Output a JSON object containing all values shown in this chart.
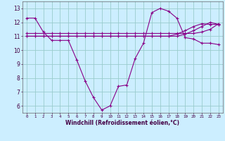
{
  "title": "",
  "xlabel": "Windchill (Refroidissement éolien,°C)",
  "ylabel": "",
  "bg_color": "#cceeff",
  "line_color": "#880088",
  "grid_color": "#99cccc",
  "hours": [
    0,
    1,
    2,
    3,
    4,
    5,
    6,
    7,
    8,
    9,
    10,
    11,
    12,
    13,
    14,
    15,
    16,
    17,
    18,
    19,
    20,
    21,
    22,
    23
  ],
  "curve1": [
    12.3,
    12.3,
    11.3,
    10.7,
    10.7,
    10.7,
    9.3,
    7.8,
    6.6,
    5.7,
    6.0,
    7.4,
    7.5,
    9.4,
    10.5,
    12.7,
    13.0,
    12.8,
    12.3,
    10.9,
    10.8,
    10.5,
    10.5,
    10.4
  ],
  "curve2": [
    11.2,
    11.2,
    11.2,
    11.2,
    11.2,
    11.2,
    11.2,
    11.2,
    11.2,
    11.2,
    11.2,
    11.2,
    11.2,
    11.2,
    11.2,
    11.2,
    11.2,
    11.2,
    11.2,
    11.2,
    11.2,
    11.3,
    11.5,
    11.9
  ],
  "curve3": [
    11.0,
    11.0,
    11.0,
    11.0,
    11.0,
    11.0,
    11.0,
    11.0,
    11.0,
    11.0,
    11.0,
    11.0,
    11.0,
    11.0,
    11.0,
    11.0,
    11.0,
    11.0,
    11.0,
    11.15,
    11.4,
    11.7,
    12.0,
    11.85
  ],
  "curve4": [
    11.0,
    11.0,
    11.0,
    11.0,
    11.0,
    11.0,
    11.0,
    11.0,
    11.0,
    11.0,
    11.0,
    11.0,
    11.0,
    11.0,
    11.0,
    11.0,
    11.0,
    11.0,
    11.15,
    11.4,
    11.7,
    11.9,
    11.85,
    11.85
  ],
  "ylim": [
    5.5,
    13.5
  ],
  "xlim": [
    -0.5,
    23.5
  ],
  "xtick_labels": [
    "0",
    "1",
    "2",
    "3",
    "4",
    "5",
    "6",
    "7",
    "8",
    "9",
    "10",
    "11",
    "12",
    "13",
    "14",
    "15",
    "16",
    "17",
    "18",
    "19",
    "20",
    "21",
    "22",
    "23"
  ]
}
